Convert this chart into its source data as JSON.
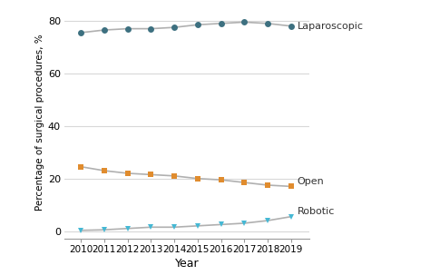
{
  "years": [
    2010,
    2011,
    2012,
    2013,
    2014,
    2015,
    2016,
    2017,
    2018,
    2019
  ],
  "laparoscopic": [
    75.5,
    76.5,
    77.0,
    77.0,
    77.5,
    78.5,
    79.0,
    79.5,
    79.0,
    78.0
  ],
  "open": [
    24.5,
    23.0,
    22.0,
    21.5,
    21.0,
    20.0,
    19.5,
    18.5,
    17.5,
    17.0
  ],
  "robotic": [
    0.3,
    0.5,
    1.0,
    1.5,
    1.5,
    2.0,
    2.5,
    3.0,
    4.0,
    5.5
  ],
  "laparoscopic_color": "#3d7080",
  "open_color": "#e08c2e",
  "robotic_color": "#45b8d4",
  "line_color": "#b0b0b0",
  "ylabel": "Percentage of surgical procedures, %",
  "xlabel": "Year",
  "label_laparoscopic": "Laparoscopic",
  "label_open": "Open",
  "label_robotic": "Robotic",
  "ylim": [
    -3,
    86
  ],
  "yticks": [
    0,
    20,
    40,
    60,
    80
  ],
  "background_color": "#ffffff",
  "grid_color": "#d8d8d8"
}
